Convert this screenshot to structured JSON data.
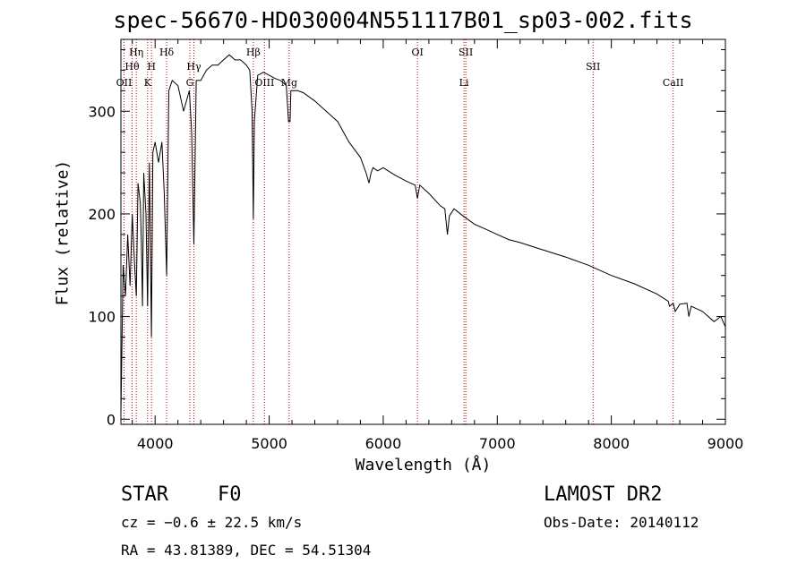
{
  "chart_data": {
    "type": "line",
    "title": "spec-56670-HD030004N551117B01_sp03-002.fits",
    "xlabel": "Wavelength (Å)",
    "ylabel": "Flux (relative)",
    "xlim": [
      3700,
      9000
    ],
    "ylim": [
      -5,
      370
    ],
    "xticks": [
      4000,
      5000,
      6000,
      7000,
      8000,
      9000
    ],
    "yticks": [
      0,
      100,
      200,
      300
    ],
    "grid": false,
    "series": [
      {
        "x": [
          3700,
          3720,
          3740,
          3760,
          3780,
          3800,
          3820,
          3835,
          3850,
          3870,
          3880,
          3889,
          3900,
          3920,
          3934,
          3950,
          3968,
          3980,
          4000,
          4030,
          4060,
          4080,
          4101,
          4120,
          4150,
          4200,
          4250,
          4300,
          4320,
          4340,
          4360,
          4400,
          4450,
          4500,
          4550,
          4600,
          4650,
          4700,
          4750,
          4800,
          4830,
          4850,
          4861,
          4870,
          4900,
          4950,
          5000,
          5050,
          5100,
          5150,
          5170,
          5183,
          5190,
          5250,
          5300,
          5400,
          5500,
          5600,
          5700,
          5800,
          5850,
          5875,
          5893,
          5910,
          5950,
          6000,
          6100,
          6200,
          6280,
          6300,
          6320,
          6400,
          6500,
          6540,
          6563,
          6580,
          6620,
          6700,
          6800,
          6900,
          7000,
          7100,
          7200,
          7400,
          7600,
          7800,
          8000,
          8200,
          8400,
          8498,
          8510,
          8542,
          8560,
          8600,
          8662,
          8680,
          8700,
          8800,
          8900,
          8960,
          9000
        ],
        "y": [
          5,
          150,
          120,
          180,
          130,
          200,
          150,
          120,
          230,
          210,
          170,
          110,
          240,
          200,
          110,
          250,
          80,
          260,
          270,
          250,
          270,
          220,
          140,
          320,
          330,
          325,
          300,
          320,
          280,
          170,
          330,
          330,
          340,
          345,
          345,
          350,
          355,
          350,
          350,
          345,
          340,
          300,
          195,
          290,
          335,
          338,
          335,
          332,
          330,
          325,
          290,
          290,
          320,
          320,
          318,
          310,
          300,
          290,
          270,
          255,
          240,
          230,
          240,
          245,
          242,
          245,
          238,
          232,
          228,
          215,
          228,
          220,
          208,
          205,
          180,
          198,
          205,
          198,
          190,
          185,
          180,
          175,
          172,
          165,
          158,
          150,
          140,
          132,
          122,
          115,
          110,
          113,
          105,
          112,
          113,
          100,
          110,
          105,
          95,
          100,
          90
        ]
      }
    ],
    "lines": [
      {
        "label": "Hη",
        "x": 3835,
        "row": 1
      },
      {
        "label": "Hθ",
        "x": 3798,
        "row": 2
      },
      {
        "label": "OII",
        "x": 3727,
        "row": 3
      },
      {
        "label": "H",
        "x": 3968,
        "row": 2
      },
      {
        "label": "K",
        "x": 3934,
        "row": 3
      },
      {
        "label": "Hδ",
        "x": 4101,
        "row": 1
      },
      {
        "label": "Hγ",
        "x": 4340,
        "row": 2
      },
      {
        "label": "G",
        "x": 4305,
        "row": 3
      },
      {
        "label": "Hβ",
        "x": 4861,
        "row": 1
      },
      {
        "label": "OIII",
        "x": 4959,
        "row": 3
      },
      {
        "label": "Mg",
        "x": 5175,
        "row": 3
      },
      {
        "label": "OI",
        "x": 6300,
        "row": 1
      },
      {
        "label": "SII",
        "x": 6724,
        "row": 1
      },
      {
        "label": "Li",
        "x": 6708,
        "row": 3
      },
      {
        "label": "SII",
        "x": 7840,
        "row": 2
      },
      {
        "label": "CaII",
        "x": 8542,
        "row": 3
      }
    ]
  },
  "info": {
    "objtype": "STAR",
    "subclass": "F0",
    "survey": "LAMOST DR2",
    "cz": "cz = −0.6 ± 22.5 km/s",
    "obsdate": "Obs-Date: 20140112",
    "radec": "RA =  43.81389, DEC =  54.51304"
  }
}
